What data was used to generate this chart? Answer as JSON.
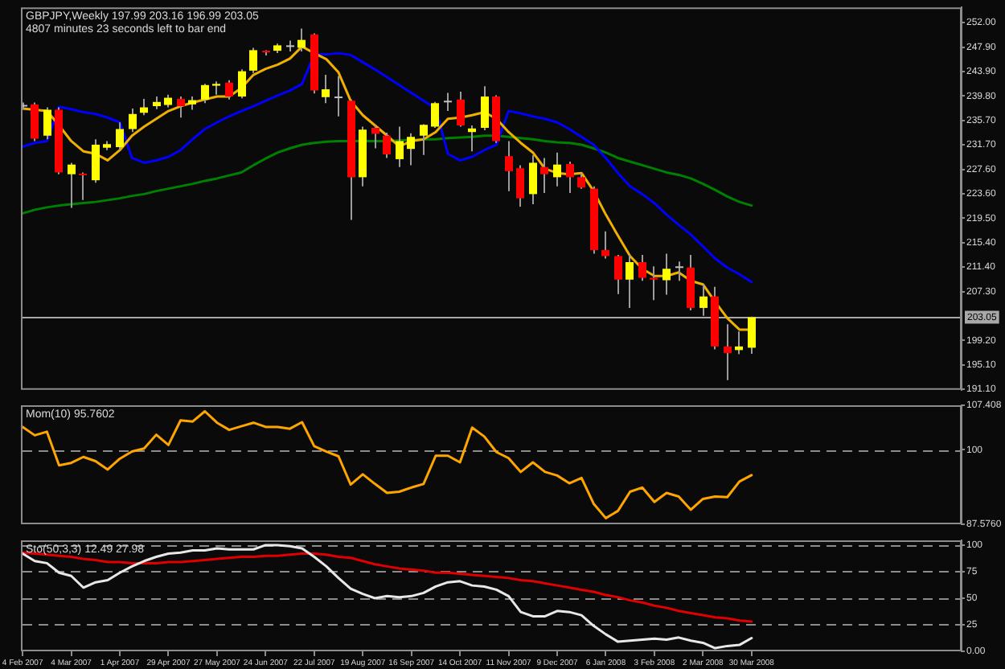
{
  "chart_data": [
    {
      "type": "candlestick",
      "title": "GBPJPY,Weekly 197.99 203.16 196.99 203.05",
      "subtitle": "4807 minutes 23 seconds left to bar end",
      "x": [
        "2007-02-04",
        "2007-02-11",
        "2007-02-18",
        "2007-02-25",
        "2007-03-04",
        "2007-03-11",
        "2007-03-18",
        "2007-03-25",
        "2007-04-01",
        "2007-04-08",
        "2007-04-15",
        "2007-04-22",
        "2007-04-29",
        "2007-05-06",
        "2007-05-13",
        "2007-05-20",
        "2007-05-27",
        "2007-06-03",
        "2007-06-10",
        "2007-06-17",
        "2007-06-24",
        "2007-07-01",
        "2007-07-08",
        "2007-07-15",
        "2007-07-22",
        "2007-07-29",
        "2007-08-05",
        "2007-08-12",
        "2007-08-19",
        "2007-08-26",
        "2007-09-02",
        "2007-09-09",
        "2007-09-16",
        "2007-09-23",
        "2007-09-30",
        "2007-10-07",
        "2007-10-14",
        "2007-10-21",
        "2007-10-28",
        "2007-11-04",
        "2007-11-11",
        "2007-11-18",
        "2007-11-25",
        "2007-12-02",
        "2007-12-09",
        "2007-12-16",
        "2007-12-23",
        "2007-12-30",
        "2008-01-06",
        "2008-01-13",
        "2008-01-20",
        "2008-01-27",
        "2008-02-03",
        "2008-02-10",
        "2008-02-17",
        "2008-02-24",
        "2008-03-02",
        "2008-03-09",
        "2008-03-16",
        "2008-03-23",
        "2008-03-30"
      ],
      "ohlc": [
        [
          238.3,
          238.7,
          237.6,
          238.3
        ],
        [
          238.4,
          238.7,
          232.3,
          232.7
        ],
        [
          233.2,
          237.9,
          232.6,
          237.5
        ],
        [
          237.5,
          237.9,
          226.8,
          227.1
        ],
        [
          226.8,
          228.7,
          221.2,
          228.4
        ],
        [
          226.9,
          227.1,
          222.5,
          226.8
        ],
        [
          225.8,
          232.6,
          225.4,
          231.7
        ],
        [
          231.2,
          232.3,
          230.8,
          231.8
        ],
        [
          231.3,
          235.4,
          230.8,
          234.3
        ],
        [
          234.3,
          237.7,
          233.8,
          236.8
        ],
        [
          237.0,
          239.3,
          236.6,
          237.9
        ],
        [
          238.1,
          239.7,
          237.6,
          238.8
        ],
        [
          238.3,
          240.0,
          237.9,
          239.5
        ],
        [
          239.3,
          239.7,
          236.2,
          238.1
        ],
        [
          238.4,
          239.7,
          237.5,
          239.1
        ],
        [
          239.2,
          241.8,
          238.6,
          241.6
        ],
        [
          241.5,
          242.2,
          240.0,
          241.8
        ],
        [
          242.0,
          242.4,
          239.2,
          239.7
        ],
        [
          239.7,
          244.2,
          239.4,
          243.9
        ],
        [
          244.0,
          247.8,
          243.6,
          247.4
        ],
        [
          247.3,
          247.4,
          246.5,
          247.1
        ],
        [
          247.3,
          248.5,
          246.9,
          248.2
        ],
        [
          248.2,
          249.0,
          247.2,
          248.2
        ],
        [
          247.8,
          251.0,
          247.2,
          249.1
        ],
        [
          250.0,
          250.2,
          240.2,
          240.7
        ],
        [
          239.6,
          243.3,
          238.6,
          240.9
        ],
        [
          239.7,
          243.1,
          236.4,
          239.7
        ],
        [
          239.0,
          239.2,
          219.2,
          226.3
        ],
        [
          226.3,
          234.7,
          224.8,
          234.2
        ],
        [
          234.5,
          234.9,
          231.1,
          233.5
        ],
        [
          233.2,
          233.7,
          229.5,
          230.1
        ],
        [
          229.3,
          234.7,
          228.0,
          232.3
        ],
        [
          231.0,
          233.6,
          228.3,
          233.0
        ],
        [
          233.2,
          235.1,
          230.0,
          235.0
        ],
        [
          234.7,
          238.8,
          234.5,
          238.6
        ],
        [
          239.0,
          240.3,
          237.3,
          239.0
        ],
        [
          239.2,
          240.5,
          234.7,
          234.9
        ],
        [
          233.8,
          234.9,
          230.6,
          234.4
        ],
        [
          234.5,
          241.4,
          234.1,
          239.7
        ],
        [
          239.7,
          239.9,
          232.0,
          232.3
        ],
        [
          229.8,
          232.3,
          224.0,
          227.3
        ],
        [
          227.8,
          228.3,
          221.4,
          222.8
        ],
        [
          223.5,
          230.0,
          221.8,
          228.7
        ],
        [
          228.0,
          229.5,
          223.7,
          226.8
        ],
        [
          226.3,
          230.4,
          224.8,
          228.4
        ],
        [
          228.5,
          228.9,
          223.7,
          226.3
        ],
        [
          226.3,
          227.0,
          224.4,
          224.6
        ],
        [
          224.4,
          224.8,
          213.6,
          214.2
        ],
        [
          214.2,
          217.3,
          212.8,
          213.2
        ],
        [
          213.2,
          213.4,
          206.9,
          209.3
        ],
        [
          209.3,
          213.4,
          204.6,
          212.2
        ],
        [
          212.2,
          213.4,
          209.1,
          209.6
        ],
        [
          209.6,
          211.5,
          205.9,
          209.3
        ],
        [
          209.2,
          213.6,
          206.8,
          211.1
        ],
        [
          211.5,
          212.3,
          209.1,
          211.5
        ],
        [
          211.3,
          213.4,
          204.2,
          204.6
        ],
        [
          204.6,
          208.5,
          203.3,
          206.5
        ],
        [
          206.5,
          208.1,
          197.7,
          198.2
        ],
        [
          198.2,
          201.9,
          192.6,
          197.1
        ],
        [
          197.6,
          200.7,
          196.9,
          198.2
        ],
        [
          197.99,
          203.16,
          196.99,
          203.05
        ]
      ],
      "colors": [
        "#c0c0c0",
        "#ff0000",
        "#ffff00",
        "#ff0000",
        "#ffff00",
        "#ff0000",
        "#ffff00",
        "#ffff00",
        "#ffff00",
        "#ffff00",
        "#ffff00",
        "#ffff00",
        "#ffff00",
        "#ff0000",
        "#ffff00",
        "#ffff00",
        "#ffff00",
        "#ff0000",
        "#ffff00",
        "#ffff00",
        "#ff0000",
        "#ffff00",
        "#c0c0c0",
        "#ffff00",
        "#ff0000",
        "#ffff00",
        "#c0c0c0",
        "#ff0000",
        "#ffff00",
        "#ff0000",
        "#ff0000",
        "#ffff00",
        "#ffff00",
        "#ffff00",
        "#ffff00",
        "#c0c0c0",
        "#ff0000",
        "#ffff00",
        "#ffff00",
        "#ff0000",
        "#ff0000",
        "#ff0000",
        "#ffff00",
        "#ff0000",
        "#ffff00",
        "#ff0000",
        "#ff0000",
        "#ff0000",
        "#ff0000",
        "#ff0000",
        "#ffff00",
        "#ff0000",
        "#ff0000",
        "#ffff00",
        "#c0c0c0",
        "#ff0000",
        "#ffff00",
        "#ff0000",
        "#ff0000",
        "#ffff00",
        "#ffff00"
      ],
      "series": [
        {
          "type": "line",
          "color": "#f0b000",
          "values": [
            237.7,
            237.5,
            237.3,
            234.9,
            232.3,
            230.6,
            230.2,
            229.1,
            230.8,
            233.2,
            234.7,
            236.0,
            237.3,
            238.1,
            238.7,
            239.2,
            239.7,
            239.7,
            241.1,
            243.3,
            244.3,
            245.0,
            246.0,
            248.0,
            246.9,
            245.9,
            243.7,
            239.0,
            236.6,
            234.9,
            233.2,
            231.4,
            232.3,
            232.6,
            233.8,
            236.0,
            236.2,
            236.6,
            237.1,
            236.0,
            233.8,
            232.0,
            230.4,
            227.7,
            227.0,
            226.8,
            227.0,
            224.0,
            220.1,
            216.6,
            213.2,
            211.1,
            209.9,
            209.9,
            210.5,
            209.1,
            208.5,
            205.6,
            202.9,
            201.0,
            201.0
          ]
        },
        {
          "type": "line",
          "color": "#0000ff",
          "values": [
            231.4,
            232.0,
            232.3,
            238.0,
            237.6,
            237.1,
            236.8,
            236.2,
            235.4,
            229.5,
            228.7,
            229.1,
            229.7,
            230.8,
            232.6,
            234.3,
            235.4,
            236.4,
            237.3,
            238.1,
            239.0,
            239.9,
            240.7,
            241.8,
            246.7,
            246.7,
            246.9,
            246.6,
            245.4,
            244.2,
            242.9,
            241.6,
            240.3,
            239.0,
            237.7,
            230.2,
            229.1,
            229.7,
            230.8,
            231.7,
            237.3,
            236.9,
            236.4,
            236.0,
            235.4,
            234.3,
            233.0,
            231.7,
            229.5,
            227.0,
            224.8,
            223.5,
            222.0,
            220.1,
            218.4,
            216.8,
            214.8,
            212.8,
            211.3,
            210.2,
            208.9
          ]
        },
        {
          "type": "line",
          "color": "#008000",
          "values": [
            220.3,
            220.9,
            221.3,
            221.6,
            221.8,
            222.0,
            222.2,
            222.5,
            222.8,
            223.2,
            223.5,
            224.0,
            224.4,
            224.8,
            225.2,
            225.7,
            226.1,
            226.6,
            227.1,
            228.3,
            229.4,
            230.4,
            231.1,
            231.7,
            232.0,
            232.2,
            232.3,
            232.3,
            232.3,
            232.3,
            232.3,
            232.4,
            232.5,
            232.6,
            232.6,
            232.8,
            232.9,
            233.0,
            233.2,
            233.2,
            233.0,
            232.8,
            232.6,
            232.3,
            232.1,
            232.0,
            231.7,
            231.1,
            230.4,
            229.5,
            228.9,
            228.3,
            227.7,
            227.1,
            226.7,
            226.1,
            225.2,
            224.2,
            223.1,
            222.2,
            221.6
          ]
        }
      ],
      "xlim": [
        "2007-02-03",
        "2008-07-29"
      ],
      "ylim": [
        191.0,
        254.5
      ],
      "yticks": [
        {
          "value": 252.0,
          "label": "252.00"
        },
        {
          "value": 247.9,
          "label": "247.90"
        },
        {
          "value": 243.9,
          "label": "243.90"
        },
        {
          "value": 239.8,
          "label": "239.80"
        },
        {
          "value": 235.7,
          "label": "235.70"
        },
        {
          "value": 231.7,
          "label": "231.70"
        },
        {
          "value": 227.6,
          "label": "227.60"
        },
        {
          "value": 223.6,
          "label": "223.60"
        },
        {
          "value": 219.5,
          "label": "219.50"
        },
        {
          "value": 215.4,
          "label": "215.40"
        },
        {
          "value": 211.4,
          "label": "211.40"
        },
        {
          "value": 207.3,
          "label": "207.30"
        },
        {
          "value": 199.2,
          "label": "199.20"
        },
        {
          "value": 195.1,
          "label": "195.10"
        },
        {
          "value": 191.1,
          "label": "191.10"
        }
      ],
      "ref_lines": [
        {
          "axis": "y",
          "value": 203.05,
          "label": "203.05",
          "color": "#a8a8a8"
        }
      ],
      "tick_labels": "y"
    },
    {
      "type": "line",
      "title": "Mom(10) 95.7602",
      "x": [
        "2007-02-04",
        "2007-02-11",
        "2007-02-18",
        "2007-02-25",
        "2007-03-04",
        "2007-03-11",
        "2007-03-18",
        "2007-03-25",
        "2007-04-01",
        "2007-04-08",
        "2007-04-15",
        "2007-04-22",
        "2007-04-29",
        "2007-05-06",
        "2007-05-13",
        "2007-05-20",
        "2007-05-27",
        "2007-06-03",
        "2007-06-10",
        "2007-06-17",
        "2007-06-24",
        "2007-07-01",
        "2007-07-08",
        "2007-07-15",
        "2007-07-22",
        "2007-07-29",
        "2007-08-05",
        "2007-08-12",
        "2007-08-19",
        "2007-08-26",
        "2007-09-02",
        "2007-09-09",
        "2007-09-16",
        "2007-09-23",
        "2007-09-30",
        "2007-10-07",
        "2007-10-14",
        "2007-10-21",
        "2007-10-28",
        "2007-11-04",
        "2007-11-11",
        "2007-11-18",
        "2007-11-25",
        "2007-12-02",
        "2007-12-09",
        "2007-12-16",
        "2007-12-23",
        "2007-12-30",
        "2008-01-06",
        "2008-01-13",
        "2008-01-20",
        "2008-01-27",
        "2008-02-03",
        "2008-02-10",
        "2008-02-17",
        "2008-02-24",
        "2008-03-02",
        "2008-03-09",
        "2008-03-16",
        "2008-03-23",
        "2008-03-30"
      ],
      "series": [
        {
          "color": "#ffa500",
          "values": [
            103.8,
            102.4,
            103.0,
            97.4,
            97.8,
            98.8,
            98.1,
            96.7,
            98.5,
            99.7,
            100.2,
            102.5,
            100.8,
            104.9,
            104.7,
            106.4,
            104.5,
            103.3,
            103.9,
            104.5,
            103.8,
            103.8,
            103.5,
            104.6,
            100.6,
            99.7,
            98.9,
            94.2,
            95.9,
            94.3,
            92.8,
            93.0,
            93.7,
            94.3,
            99.0,
            99.0,
            97.9,
            103.7,
            102.2,
            99.6,
            98.6,
            96.3,
            97.9,
            96.3,
            95.7,
            94.4,
            95.3,
            91.0,
            88.6,
            89.8,
            93.0,
            93.7,
            91.3,
            92.8,
            92.2,
            90.0,
            91.8,
            92.2,
            92.1,
            94.7,
            95.7602
          ]
        }
      ],
      "xlim": [
        "2007-02-03",
        "2008-07-29"
      ],
      "ylim": [
        87.576,
        107.408
      ],
      "yticks": [
        {
          "value": 107.408,
          "label": "107.408"
        },
        100,
        {
          "value": 87.576,
          "label": "87.5760"
        }
      ],
      "ref_lines": [
        {
          "axis": "y",
          "value": 100,
          "color": "#8c8c8c",
          "line_style": "dashed"
        }
      ],
      "tick_labels": "y"
    },
    {
      "type": "line",
      "title": "Sto(50,3,3) 12.49 27.98",
      "x": [
        "2007-02-04",
        "2007-02-11",
        "2007-02-18",
        "2007-02-25",
        "2007-03-04",
        "2007-03-11",
        "2007-03-18",
        "2007-03-25",
        "2007-04-01",
        "2007-04-08",
        "2007-04-15",
        "2007-04-22",
        "2007-04-29",
        "2007-05-06",
        "2007-05-13",
        "2007-05-20",
        "2007-05-27",
        "2007-06-03",
        "2007-06-10",
        "2007-06-17",
        "2007-06-24",
        "2007-07-01",
        "2007-07-08",
        "2007-07-15",
        "2007-07-22",
        "2007-07-29",
        "2007-08-05",
        "2007-08-12",
        "2007-08-19",
        "2007-08-26",
        "2007-09-02",
        "2007-09-09",
        "2007-09-16",
        "2007-09-23",
        "2007-09-30",
        "2007-10-07",
        "2007-10-14",
        "2007-10-21",
        "2007-10-28",
        "2007-11-04",
        "2007-11-11",
        "2007-11-18",
        "2007-11-25",
        "2007-12-02",
        "2007-12-09",
        "2007-12-16",
        "2007-12-23",
        "2007-12-30",
        "2008-01-06",
        "2008-01-13",
        "2008-01-20",
        "2008-01-27",
        "2008-02-03",
        "2008-02-10",
        "2008-02-17",
        "2008-02-24",
        "2008-03-02",
        "2008-03-09",
        "2008-03-16",
        "2008-03-23",
        "2008-03-30"
      ],
      "series": [
        {
          "color": "#e8e8e8",
          "values": [
            92,
            85,
            83,
            74,
            71,
            60,
            65,
            67,
            74,
            80,
            85,
            89,
            92,
            93,
            95,
            95,
            97,
            96,
            96,
            96,
            100,
            100,
            99,
            97,
            89,
            80,
            69,
            59,
            54,
            50,
            52,
            51,
            52,
            55,
            61,
            65,
            66,
            62,
            61,
            58,
            52,
            37,
            33,
            33,
            38,
            37,
            34,
            24,
            16,
            9,
            10,
            11,
            12,
            11,
            13,
            10,
            8,
            3,
            5,
            6,
            12.49
          ]
        },
        {
          "color": "#e00000",
          "values": [
            93,
            92,
            91,
            90,
            89,
            87,
            86,
            84,
            84,
            83,
            83,
            83,
            84,
            84,
            85,
            86,
            87,
            88,
            89,
            89,
            90,
            90,
            91,
            92,
            92,
            91,
            89,
            88,
            85,
            82,
            80,
            78,
            77,
            76,
            74,
            74,
            73,
            72,
            71,
            70,
            69,
            67,
            66,
            64,
            62,
            60,
            58,
            56,
            53,
            51,
            48,
            46,
            43,
            41,
            38,
            36,
            34,
            32,
            31,
            29,
            27.98
          ]
        }
      ],
      "xlim": [
        "2007-02-03",
        "2008-07-29"
      ],
      "ylim": [
        0,
        104.5
      ],
      "xticks": [
        {
          "value": "2007-02-04",
          "label": "4 Feb 2007"
        },
        {
          "value": "2007-03-04",
          "label": "4 Mar 2007"
        },
        {
          "value": "2007-04-01",
          "label": "1 Apr 2007"
        },
        {
          "value": "2007-04-29",
          "label": "29 Apr 2007"
        },
        {
          "value": "2007-05-27",
          "label": "27 May 2007"
        },
        {
          "value": "2007-06-24",
          "label": "24 Jun 2007"
        },
        {
          "value": "2007-07-22",
          "label": "22 Jul 2007"
        },
        {
          "value": "2007-08-19",
          "label": "19 Aug 2007"
        },
        {
          "value": "2007-09-16",
          "label": "16 Sep 2007"
        },
        {
          "value": "2007-10-14",
          "label": "14 Oct 2007"
        },
        {
          "value": "2007-11-11",
          "label": "11 Nov 2007"
        },
        {
          "value": "2007-12-09",
          "label": "9 Dec 2007"
        },
        {
          "value": "2008-01-06",
          "label": "6 Jan 2008"
        },
        {
          "value": "2008-02-03",
          "label": "3 Feb 2008"
        },
        {
          "value": "2008-03-02",
          "label": "2 Mar 2008"
        },
        {
          "value": "2008-03-30",
          "label": "30 Mar 2008"
        }
      ],
      "yticks": [
        100,
        75,
        50,
        25,
        {
          "value": 0,
          "label": "0.00"
        }
      ],
      "ref_lines": [
        {
          "axis": "y",
          "value": 100,
          "color": "#8c8c8c",
          "line_style": "dashed"
        },
        {
          "axis": "y",
          "value": 75,
          "color": "#8c8c8c",
          "line_style": "dashed"
        },
        {
          "axis": "y",
          "value": 50,
          "color": "#8c8c8c",
          "line_style": "dashed"
        },
        {
          "axis": "y",
          "value": 25,
          "color": "#8c8c8c",
          "line_style": "dashed"
        }
      ]
    }
  ]
}
